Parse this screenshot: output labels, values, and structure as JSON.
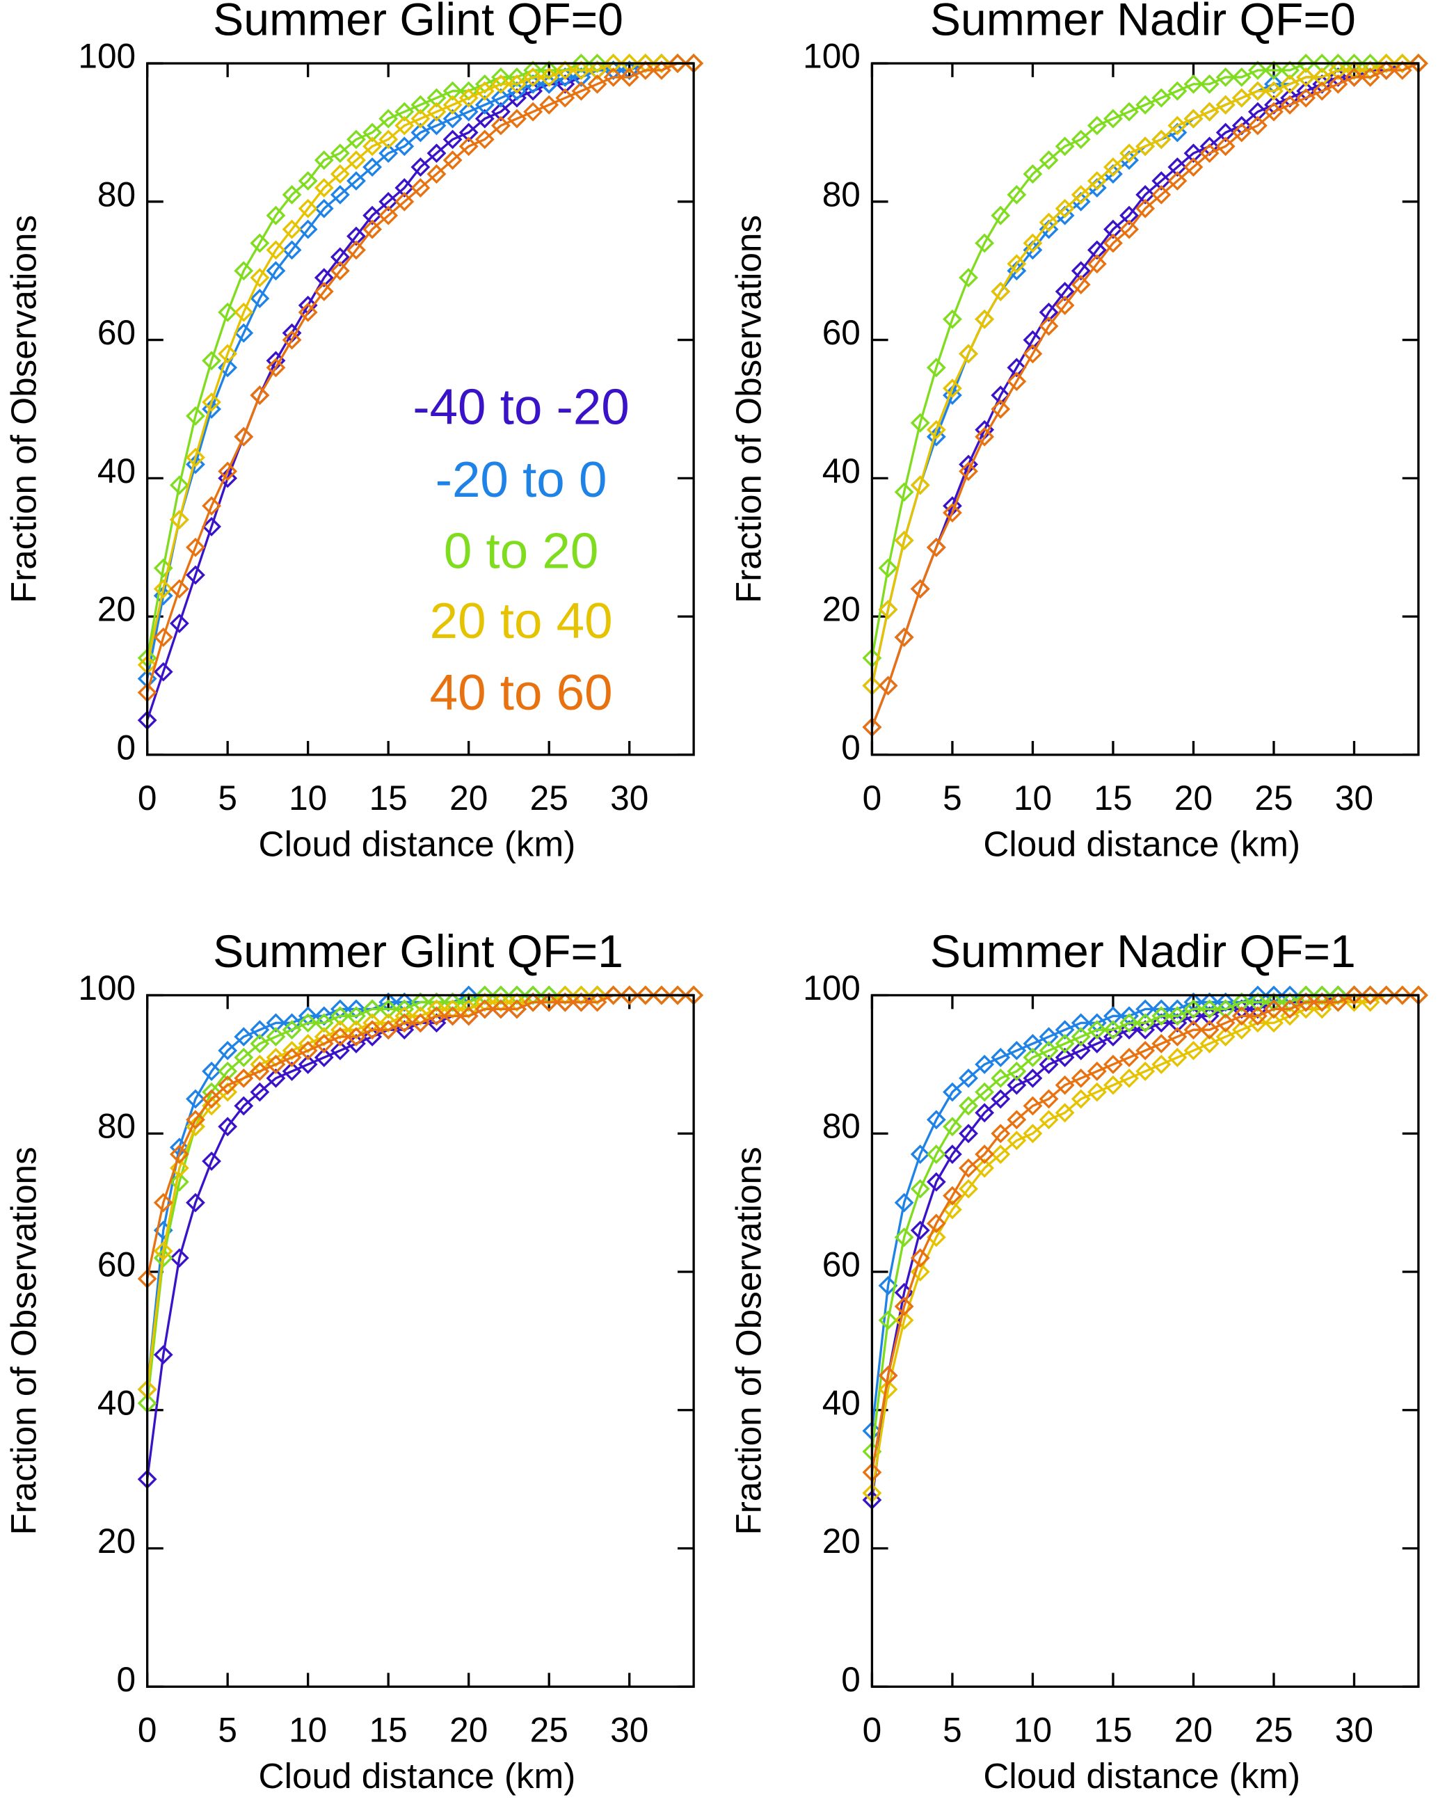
{
  "chart_data": [
    {
      "type": "line",
      "title": "Summer Glint QF=0",
      "x_label": "Cloud distance (km)",
      "y_label": "Fraction of Observations",
      "xlim": [
        0,
        34
      ],
      "ylim": [
        0,
        100
      ],
      "xticks": [
        0,
        5,
        10,
        15,
        20,
        25,
        30
      ],
      "yticks": [
        0,
        20,
        40,
        60,
        80,
        100
      ],
      "legend": "center-right",
      "marker": "diamond",
      "x": [
        0,
        1,
        2,
        3,
        4,
        5,
        6,
        7,
        8,
        9,
        10,
        11,
        12,
        13,
        14,
        15,
        16,
        17,
        18,
        19,
        20,
        21,
        22,
        23,
        24,
        25,
        26,
        27,
        28,
        29,
        30,
        31,
        32,
        33,
        34
      ],
      "series": [
        {
          "name": "-40 to -20",
          "color": "#3a12c8",
          "values": [
            5,
            12,
            19,
            26,
            33,
            40,
            46,
            52,
            57,
            61,
            65,
            69,
            72,
            75,
            78,
            80,
            82,
            85,
            87,
            89,
            90,
            92,
            93,
            95,
            96,
            97,
            97,
            98,
            99,
            99,
            99,
            100,
            100,
            100,
            100
          ]
        },
        {
          "name": "-20 to 0",
          "color": "#1e82e6",
          "values": [
            11,
            23,
            34,
            42,
            50,
            56,
            61,
            66,
            70,
            73,
            76,
            79,
            81,
            83,
            85,
            87,
            88,
            90,
            91,
            92,
            93,
            94,
            95,
            96,
            97,
            97,
            98,
            98,
            99,
            99,
            99,
            100,
            100,
            100,
            100
          ]
        },
        {
          "name": "0 to 20",
          "color": "#7fdc1e",
          "values": [
            14,
            27,
            39,
            49,
            57,
            64,
            70,
            74,
            78,
            81,
            83,
            86,
            87,
            89,
            90,
            92,
            93,
            94,
            95,
            96,
            96,
            97,
            98,
            98,
            99,
            99,
            99,
            100,
            100,
            100,
            100,
            100,
            100,
            100,
            100
          ]
        },
        {
          "name": "20 to 40",
          "color": "#e6c300",
          "values": [
            13,
            24,
            34,
            43,
            51,
            58,
            64,
            69,
            73,
            76,
            79,
            82,
            84,
            86,
            88,
            89,
            91,
            92,
            93,
            94,
            95,
            96,
            97,
            97,
            98,
            98,
            99,
            99,
            99,
            100,
            100,
            100,
            100,
            100,
            100
          ]
        },
        {
          "name": "40 to 60",
          "color": "#e8720f",
          "values": [
            9,
            17,
            24,
            30,
            36,
            41,
            46,
            52,
            56,
            60,
            64,
            67,
            70,
            73,
            76,
            78,
            80,
            82,
            84,
            86,
            88,
            89,
            91,
            92,
            93,
            94,
            95,
            96,
            97,
            98,
            98,
            99,
            99,
            100,
            100
          ]
        }
      ]
    },
    {
      "type": "line",
      "title": "Summer Nadir QF=0",
      "x_label": "Cloud distance (km)",
      "y_label": "Fraction of Observations",
      "xlim": [
        0,
        34
      ],
      "ylim": [
        0,
        100
      ],
      "xticks": [
        0,
        5,
        10,
        15,
        20,
        25,
        30
      ],
      "yticks": [
        0,
        20,
        40,
        60,
        80,
        100
      ],
      "marker": "diamond",
      "x": [
        0,
        1,
        2,
        3,
        4,
        5,
        6,
        7,
        8,
        9,
        10,
        11,
        12,
        13,
        14,
        15,
        16,
        17,
        18,
        19,
        20,
        21,
        22,
        23,
        24,
        25,
        26,
        27,
        28,
        29,
        30,
        31,
        32,
        33,
        34
      ],
      "series": [
        {
          "name": "-40 to -20",
          "color": "#3a12c8",
          "values": [
            4,
            10,
            17,
            24,
            30,
            36,
            42,
            47,
            52,
            56,
            60,
            64,
            67,
            70,
            73,
            76,
            78,
            81,
            83,
            85,
            87,
            88,
            90,
            91,
            93,
            94,
            95,
            96,
            97,
            98,
            98,
            99,
            99,
            100,
            100
          ]
        },
        {
          "name": "-20 to 0",
          "color": "#1e82e6",
          "values": [
            10,
            21,
            31,
            39,
            46,
            52,
            58,
            63,
            67,
            70,
            73,
            76,
            78,
            80,
            82,
            84,
            86,
            88,
            89,
            90,
            92,
            93,
            94,
            95,
            96,
            97,
            97,
            98,
            98,
            99,
            99,
            99,
            100,
            100,
            100
          ]
        },
        {
          "name": "0 to 20",
          "color": "#7fdc1e",
          "values": [
            14,
            27,
            38,
            48,
            56,
            63,
            69,
            74,
            78,
            81,
            84,
            86,
            88,
            89,
            91,
            92,
            93,
            94,
            95,
            96,
            97,
            97,
            98,
            98,
            99,
            99,
            99,
            100,
            100,
            100,
            100,
            100,
            100,
            100,
            100
          ]
        },
        {
          "name": "20 to 40",
          "color": "#e6c300",
          "values": [
            10,
            21,
            31,
            39,
            47,
            53,
            58,
            63,
            67,
            71,
            74,
            77,
            79,
            81,
            83,
            85,
            87,
            88,
            89,
            91,
            92,
            93,
            94,
            95,
            96,
            96,
            97,
            98,
            98,
            99,
            99,
            99,
            100,
            100,
            100
          ]
        },
        {
          "name": "40 to 60",
          "color": "#e8720f",
          "values": [
            4,
            10,
            17,
            24,
            30,
            35,
            41,
            46,
            50,
            54,
            58,
            62,
            65,
            68,
            71,
            74,
            76,
            79,
            81,
            83,
            85,
            87,
            88,
            90,
            91,
            93,
            94,
            95,
            96,
            97,
            98,
            98,
            99,
            99,
            100
          ]
        }
      ]
    },
    {
      "type": "line",
      "title": "Summer Glint QF=1",
      "x_label": "Cloud distance (km)",
      "y_label": "Fraction of Observations",
      "xlim": [
        0,
        34
      ],
      "ylim": [
        0,
        100
      ],
      "xticks": [
        0,
        5,
        10,
        15,
        20,
        25,
        30
      ],
      "yticks": [
        0,
        20,
        40,
        60,
        80,
        100
      ],
      "marker": "diamond",
      "x": [
        0,
        1,
        2,
        3,
        4,
        5,
        6,
        7,
        8,
        9,
        10,
        11,
        12,
        13,
        14,
        15,
        16,
        17,
        18,
        19,
        20,
        21,
        22,
        23,
        24,
        25,
        26,
        27,
        28,
        29,
        30,
        31,
        32,
        33,
        34
      ],
      "series": [
        {
          "name": "-40 to -20",
          "color": "#3a12c8",
          "values": [
            30,
            48,
            62,
            70,
            76,
            81,
            84,
            86,
            88,
            89,
            90,
            91,
            92,
            93,
            94,
            95,
            95,
            96,
            96,
            97,
            97,
            98,
            98,
            98,
            99,
            99,
            99,
            99,
            100,
            100,
            100,
            100,
            100,
            100,
            100
          ]
        },
        {
          "name": "-20 to 0",
          "color": "#1e82e6",
          "values": [
            43,
            66,
            78,
            85,
            89,
            92,
            94,
            95,
            96,
            96,
            97,
            97,
            98,
            98,
            98,
            99,
            99,
            99,
            99,
            99,
            100,
            100,
            100,
            100,
            100,
            100,
            100,
            100,
            100,
            100,
            100,
            100,
            100,
            100,
            100
          ]
        },
        {
          "name": "0 to 20",
          "color": "#7fdc1e",
          "values": [
            41,
            62,
            73,
            81,
            86,
            89,
            91,
            93,
            94,
            95,
            96,
            96,
            97,
            97,
            98,
            98,
            98,
            99,
            99,
            99,
            99,
            100,
            100,
            100,
            100,
            100,
            100,
            100,
            100,
            100,
            100,
            100,
            100,
            100,
            100
          ]
        },
        {
          "name": "20 to 40",
          "color": "#e6c300",
          "values": [
            43,
            63,
            75,
            81,
            84,
            86,
            88,
            90,
            91,
            92,
            93,
            94,
            95,
            95,
            96,
            96,
            97,
            97,
            98,
            98,
            98,
            99,
            99,
            99,
            99,
            99,
            100,
            100,
            100,
            100,
            100,
            100,
            100,
            100,
            100
          ]
        },
        {
          "name": "40 to 60",
          "color": "#e8720f",
          "values": [
            59,
            70,
            77,
            82,
            85,
            87,
            88,
            89,
            90,
            91,
            92,
            93,
            94,
            94,
            95,
            95,
            96,
            96,
            97,
            97,
            97,
            98,
            98,
            98,
            99,
            99,
            99,
            99,
            99,
            100,
            100,
            100,
            100,
            100,
            100
          ]
        }
      ]
    },
    {
      "type": "line",
      "title": "Summer Nadir QF=1",
      "x_label": "Cloud distance (km)",
      "y_label": "Fraction of Observations",
      "xlim": [
        0,
        34
      ],
      "ylim": [
        0,
        100
      ],
      "xticks": [
        0,
        5,
        10,
        15,
        20,
        25,
        30
      ],
      "yticks": [
        0,
        20,
        40,
        60,
        80,
        100
      ],
      "marker": "diamond",
      "x": [
        0,
        1,
        2,
        3,
        4,
        5,
        6,
        7,
        8,
        9,
        10,
        11,
        12,
        13,
        14,
        15,
        16,
        17,
        18,
        19,
        20,
        21,
        22,
        23,
        24,
        25,
        26,
        27,
        28,
        29,
        30,
        31,
        32,
        33,
        34
      ],
      "series": [
        {
          "name": "-40 to -20",
          "color": "#3a12c8",
          "values": [
            27,
            45,
            57,
            66,
            73,
            77,
            80,
            83,
            85,
            87,
            88,
            90,
            91,
            92,
            93,
            94,
            95,
            95,
            96,
            96,
            97,
            97,
            98,
            98,
            98,
            99,
            99,
            99,
            99,
            100,
            100,
            100,
            100,
            100,
            100
          ]
        },
        {
          "name": "-20 to 0",
          "color": "#1e82e6",
          "values": [
            37,
            58,
            70,
            77,
            82,
            86,
            88,
            90,
            91,
            92,
            93,
            94,
            95,
            96,
            96,
            97,
            97,
            98,
            98,
            98,
            99,
            99,
            99,
            99,
            100,
            100,
            100,
            100,
            100,
            100,
            100,
            100,
            100,
            100,
            100
          ]
        },
        {
          "name": "0 to 20",
          "color": "#7fdc1e",
          "values": [
            34,
            53,
            65,
            72,
            77,
            81,
            84,
            86,
            88,
            89,
            91,
            92,
            93,
            94,
            95,
            95,
            96,
            96,
            97,
            97,
            98,
            98,
            98,
            99,
            99,
            99,
            99,
            100,
            100,
            100,
            100,
            100,
            100,
            100,
            100
          ]
        },
        {
          "name": "20 to 40",
          "color": "#e6c300",
          "values": [
            28,
            43,
            53,
            60,
            65,
            69,
            72,
            75,
            77,
            79,
            80,
            82,
            83,
            85,
            86,
            87,
            88,
            89,
            90,
            91,
            92,
            93,
            94,
            95,
            96,
            96,
            97,
            98,
            98,
            99,
            99,
            99,
            100,
            100,
            100
          ]
        },
        {
          "name": "40 to 60",
          "color": "#e8720f",
          "values": [
            31,
            45,
            55,
            62,
            67,
            71,
            75,
            77,
            80,
            82,
            84,
            85,
            87,
            88,
            89,
            90,
            91,
            92,
            93,
            94,
            95,
            95,
            96,
            97,
            97,
            98,
            98,
            99,
            99,
            99,
            100,
            100,
            100,
            100,
            100
          ]
        }
      ]
    }
  ]
}
